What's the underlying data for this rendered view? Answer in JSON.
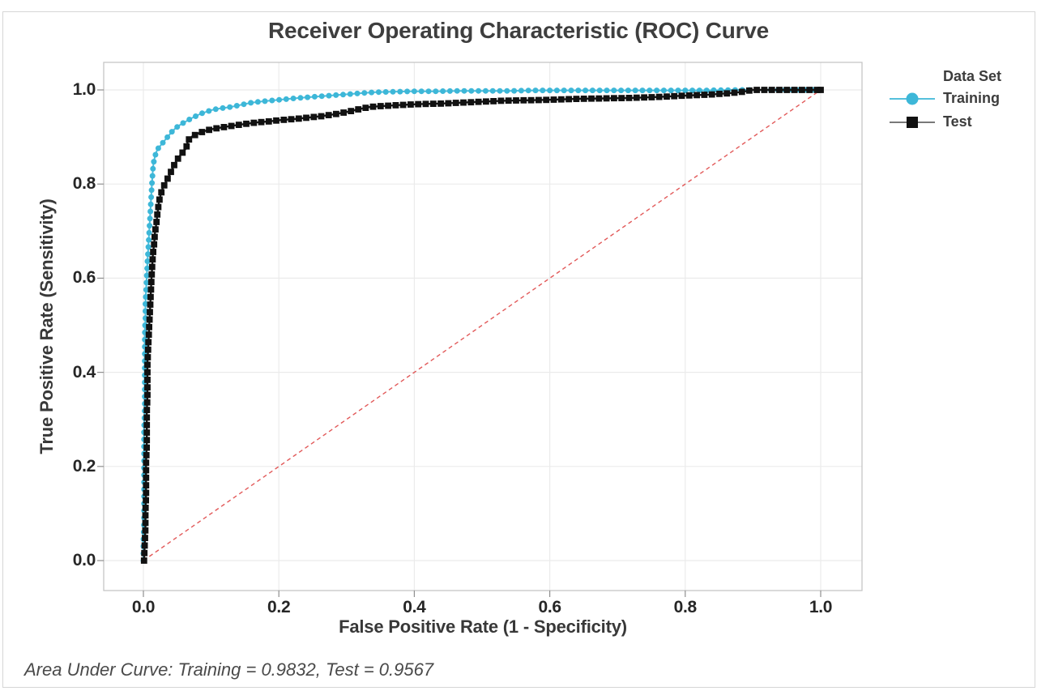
{
  "figure": {
    "title": "Receiver Operating Characteristic (ROC) Curve",
    "footnote": "Area Under Curve: Training = 0.9832, Test = 0.9567"
  },
  "chart_data": {
    "type": "line",
    "title": "Receiver Operating Characteristic (ROC) Curve",
    "xlabel": "False Positive Rate (1 - Specificity)",
    "ylabel": "True Positive Rate (Sensitivity)",
    "xlim": [
      0,
      1
    ],
    "ylim": [
      0,
      1
    ],
    "axis_padding": 0.06,
    "grid": true,
    "xticks": {
      "labels": [
        "0.0",
        "0.2",
        "0.4",
        "0.6",
        "0.8",
        "1.0"
      ],
      "values": [
        0,
        0.2,
        0.4,
        0.6,
        0.8,
        1.0
      ]
    },
    "yticks": {
      "labels": [
        "0.0",
        "0.2",
        "0.4",
        "0.6",
        "0.8",
        "1.0"
      ],
      "values": [
        0,
        0.2,
        0.4,
        0.6,
        0.8,
        1.0
      ]
    },
    "colors": {
      "grid": "#ebebeb",
      "plot_border": "#c6c6c6",
      "tick_mark": "#8f8f8f",
      "reference_line": "#e25959",
      "title_text": "#3e3e3e",
      "tick_text": "#262626",
      "footnote_text": "#4a4a4a"
    },
    "reference_line": {
      "from": [
        0,
        0
      ],
      "to": [
        1,
        1
      ],
      "style": "dashed",
      "color": "#e25959"
    },
    "legend": {
      "position": "right",
      "title": "Data Set",
      "entries": [
        {
          "name": "Training",
          "marker": "circle",
          "color": "#3db7d8",
          "line_color": "#55c0dc"
        },
        {
          "name": "Test",
          "marker": "square",
          "color": "#111111",
          "line_color": "#4d4d4d"
        }
      ]
    },
    "auc": {
      "training": 0.9832,
      "test": 0.9567
    },
    "series": [
      {
        "name": "Training",
        "marker": "circle",
        "color": "#3db7d8",
        "line_color": "#4cbcda",
        "points": [
          [
            0.0,
            0.0
          ],
          [
            0.0,
            0.04
          ],
          [
            0.001,
            0.08
          ],
          [
            0.001,
            0.12
          ],
          [
            0.001,
            0.16
          ],
          [
            0.001,
            0.2
          ],
          [
            0.001,
            0.24
          ],
          [
            0.001,
            0.28
          ],
          [
            0.002,
            0.32
          ],
          [
            0.002,
            0.36
          ],
          [
            0.002,
            0.4
          ],
          [
            0.002,
            0.44
          ],
          [
            0.002,
            0.48
          ],
          [
            0.003,
            0.515
          ],
          [
            0.003,
            0.545
          ],
          [
            0.004,
            0.575
          ],
          [
            0.005,
            0.605
          ],
          [
            0.006,
            0.635
          ],
          [
            0.007,
            0.66
          ],
          [
            0.008,
            0.685
          ],
          [
            0.009,
            0.71
          ],
          [
            0.01,
            0.735
          ],
          [
            0.011,
            0.76
          ],
          [
            0.012,
            0.785
          ],
          [
            0.013,
            0.81
          ],
          [
            0.014,
            0.83
          ],
          [
            0.015,
            0.845
          ],
          [
            0.017,
            0.858
          ],
          [
            0.019,
            0.868
          ],
          [
            0.022,
            0.876
          ],
          [
            0.026,
            0.883
          ],
          [
            0.03,
            0.89
          ],
          [
            0.034,
            0.897
          ],
          [
            0.038,
            0.904
          ],
          [
            0.042,
            0.911
          ],
          [
            0.047,
            0.918
          ],
          [
            0.052,
            0.924
          ],
          [
            0.058,
            0.929
          ],
          [
            0.064,
            0.934
          ],
          [
            0.07,
            0.939
          ],
          [
            0.077,
            0.944
          ],
          [
            0.084,
            0.949
          ],
          [
            0.092,
            0.953
          ],
          [
            0.1,
            0.957
          ],
          [
            0.11,
            0.96
          ],
          [
            0.12,
            0.962
          ],
          [
            0.13,
            0.964
          ],
          [
            0.14,
            0.967
          ],
          [
            0.15,
            0.97
          ],
          [
            0.16,
            0.973
          ],
          [
            0.172,
            0.975
          ],
          [
            0.185,
            0.977
          ],
          [
            0.2,
            0.979
          ],
          [
            0.215,
            0.981
          ],
          [
            0.23,
            0.983
          ],
          [
            0.248,
            0.985
          ],
          [
            0.266,
            0.987
          ],
          [
            0.285,
            0.989
          ],
          [
            0.303,
            0.991
          ],
          [
            0.32,
            0.993
          ],
          [
            0.34,
            0.995
          ],
          [
            0.365,
            0.996
          ],
          [
            0.395,
            0.997
          ],
          [
            0.43,
            0.997
          ],
          [
            0.465,
            0.998
          ],
          [
            0.5,
            0.998
          ],
          [
            0.54,
            0.998
          ],
          [
            0.58,
            0.999
          ],
          [
            0.63,
            0.999
          ],
          [
            0.68,
            0.999
          ],
          [
            0.73,
            0.999
          ],
          [
            0.78,
            0.999
          ],
          [
            0.83,
            0.999
          ],
          [
            0.88,
            1.0
          ],
          [
            0.94,
            1.0
          ],
          [
            1.0,
            1.0
          ]
        ]
      },
      {
        "name": "Test",
        "marker": "square",
        "color": "#111111",
        "line_color": "#141414",
        "points": [
          [
            0.001,
            0.0
          ],
          [
            0.002,
            0.035
          ],
          [
            0.003,
            0.07
          ],
          [
            0.003,
            0.105
          ],
          [
            0.004,
            0.14
          ],
          [
            0.004,
            0.175
          ],
          [
            0.004,
            0.21
          ],
          [
            0.005,
            0.245
          ],
          [
            0.005,
            0.28
          ],
          [
            0.005,
            0.315
          ],
          [
            0.006,
            0.35
          ],
          [
            0.006,
            0.385
          ],
          [
            0.006,
            0.42
          ],
          [
            0.007,
            0.45
          ],
          [
            0.008,
            0.48
          ],
          [
            0.009,
            0.51
          ],
          [
            0.01,
            0.54
          ],
          [
            0.011,
            0.57
          ],
          [
            0.012,
            0.6
          ],
          [
            0.013,
            0.625
          ],
          [
            0.014,
            0.65
          ],
          [
            0.016,
            0.675
          ],
          [
            0.017,
            0.695
          ],
          [
            0.019,
            0.715
          ],
          [
            0.021,
            0.74
          ],
          [
            0.023,
            0.762
          ],
          [
            0.026,
            0.78
          ],
          [
            0.029,
            0.793
          ],
          [
            0.033,
            0.803
          ],
          [
            0.037,
            0.815
          ],
          [
            0.041,
            0.827
          ],
          [
            0.045,
            0.839
          ],
          [
            0.049,
            0.85
          ],
          [
            0.054,
            0.86
          ],
          [
            0.059,
            0.869
          ],
          [
            0.063,
            0.876
          ],
          [
            0.066,
            0.893
          ],
          [
            0.072,
            0.901
          ],
          [
            0.08,
            0.907
          ],
          [
            0.089,
            0.912
          ],
          [
            0.099,
            0.916
          ],
          [
            0.11,
            0.919
          ],
          [
            0.123,
            0.922
          ],
          [
            0.137,
            0.925
          ],
          [
            0.152,
            0.928
          ],
          [
            0.168,
            0.931
          ],
          [
            0.185,
            0.933
          ],
          [
            0.203,
            0.936
          ],
          [
            0.222,
            0.938
          ],
          [
            0.242,
            0.941
          ],
          [
            0.262,
            0.944
          ],
          [
            0.281,
            0.948
          ],
          [
            0.3,
            0.953
          ],
          [
            0.318,
            0.959
          ],
          [
            0.335,
            0.964
          ],
          [
            0.355,
            0.966
          ],
          [
            0.38,
            0.968
          ],
          [
            0.41,
            0.97
          ],
          [
            0.44,
            0.971
          ],
          [
            0.47,
            0.973
          ],
          [
            0.5,
            0.975
          ],
          [
            0.53,
            0.977
          ],
          [
            0.565,
            0.978
          ],
          [
            0.6,
            0.979
          ],
          [
            0.64,
            0.981
          ],
          [
            0.68,
            0.982
          ],
          [
            0.72,
            0.983
          ],
          [
            0.76,
            0.985
          ],
          [
            0.8,
            0.988
          ],
          [
            0.835,
            0.99
          ],
          [
            0.865,
            0.993
          ],
          [
            0.885,
            0.996
          ],
          [
            0.9,
            1.0
          ],
          [
            0.95,
            1.0
          ],
          [
            1.0,
            1.0
          ]
        ]
      }
    ]
  }
}
